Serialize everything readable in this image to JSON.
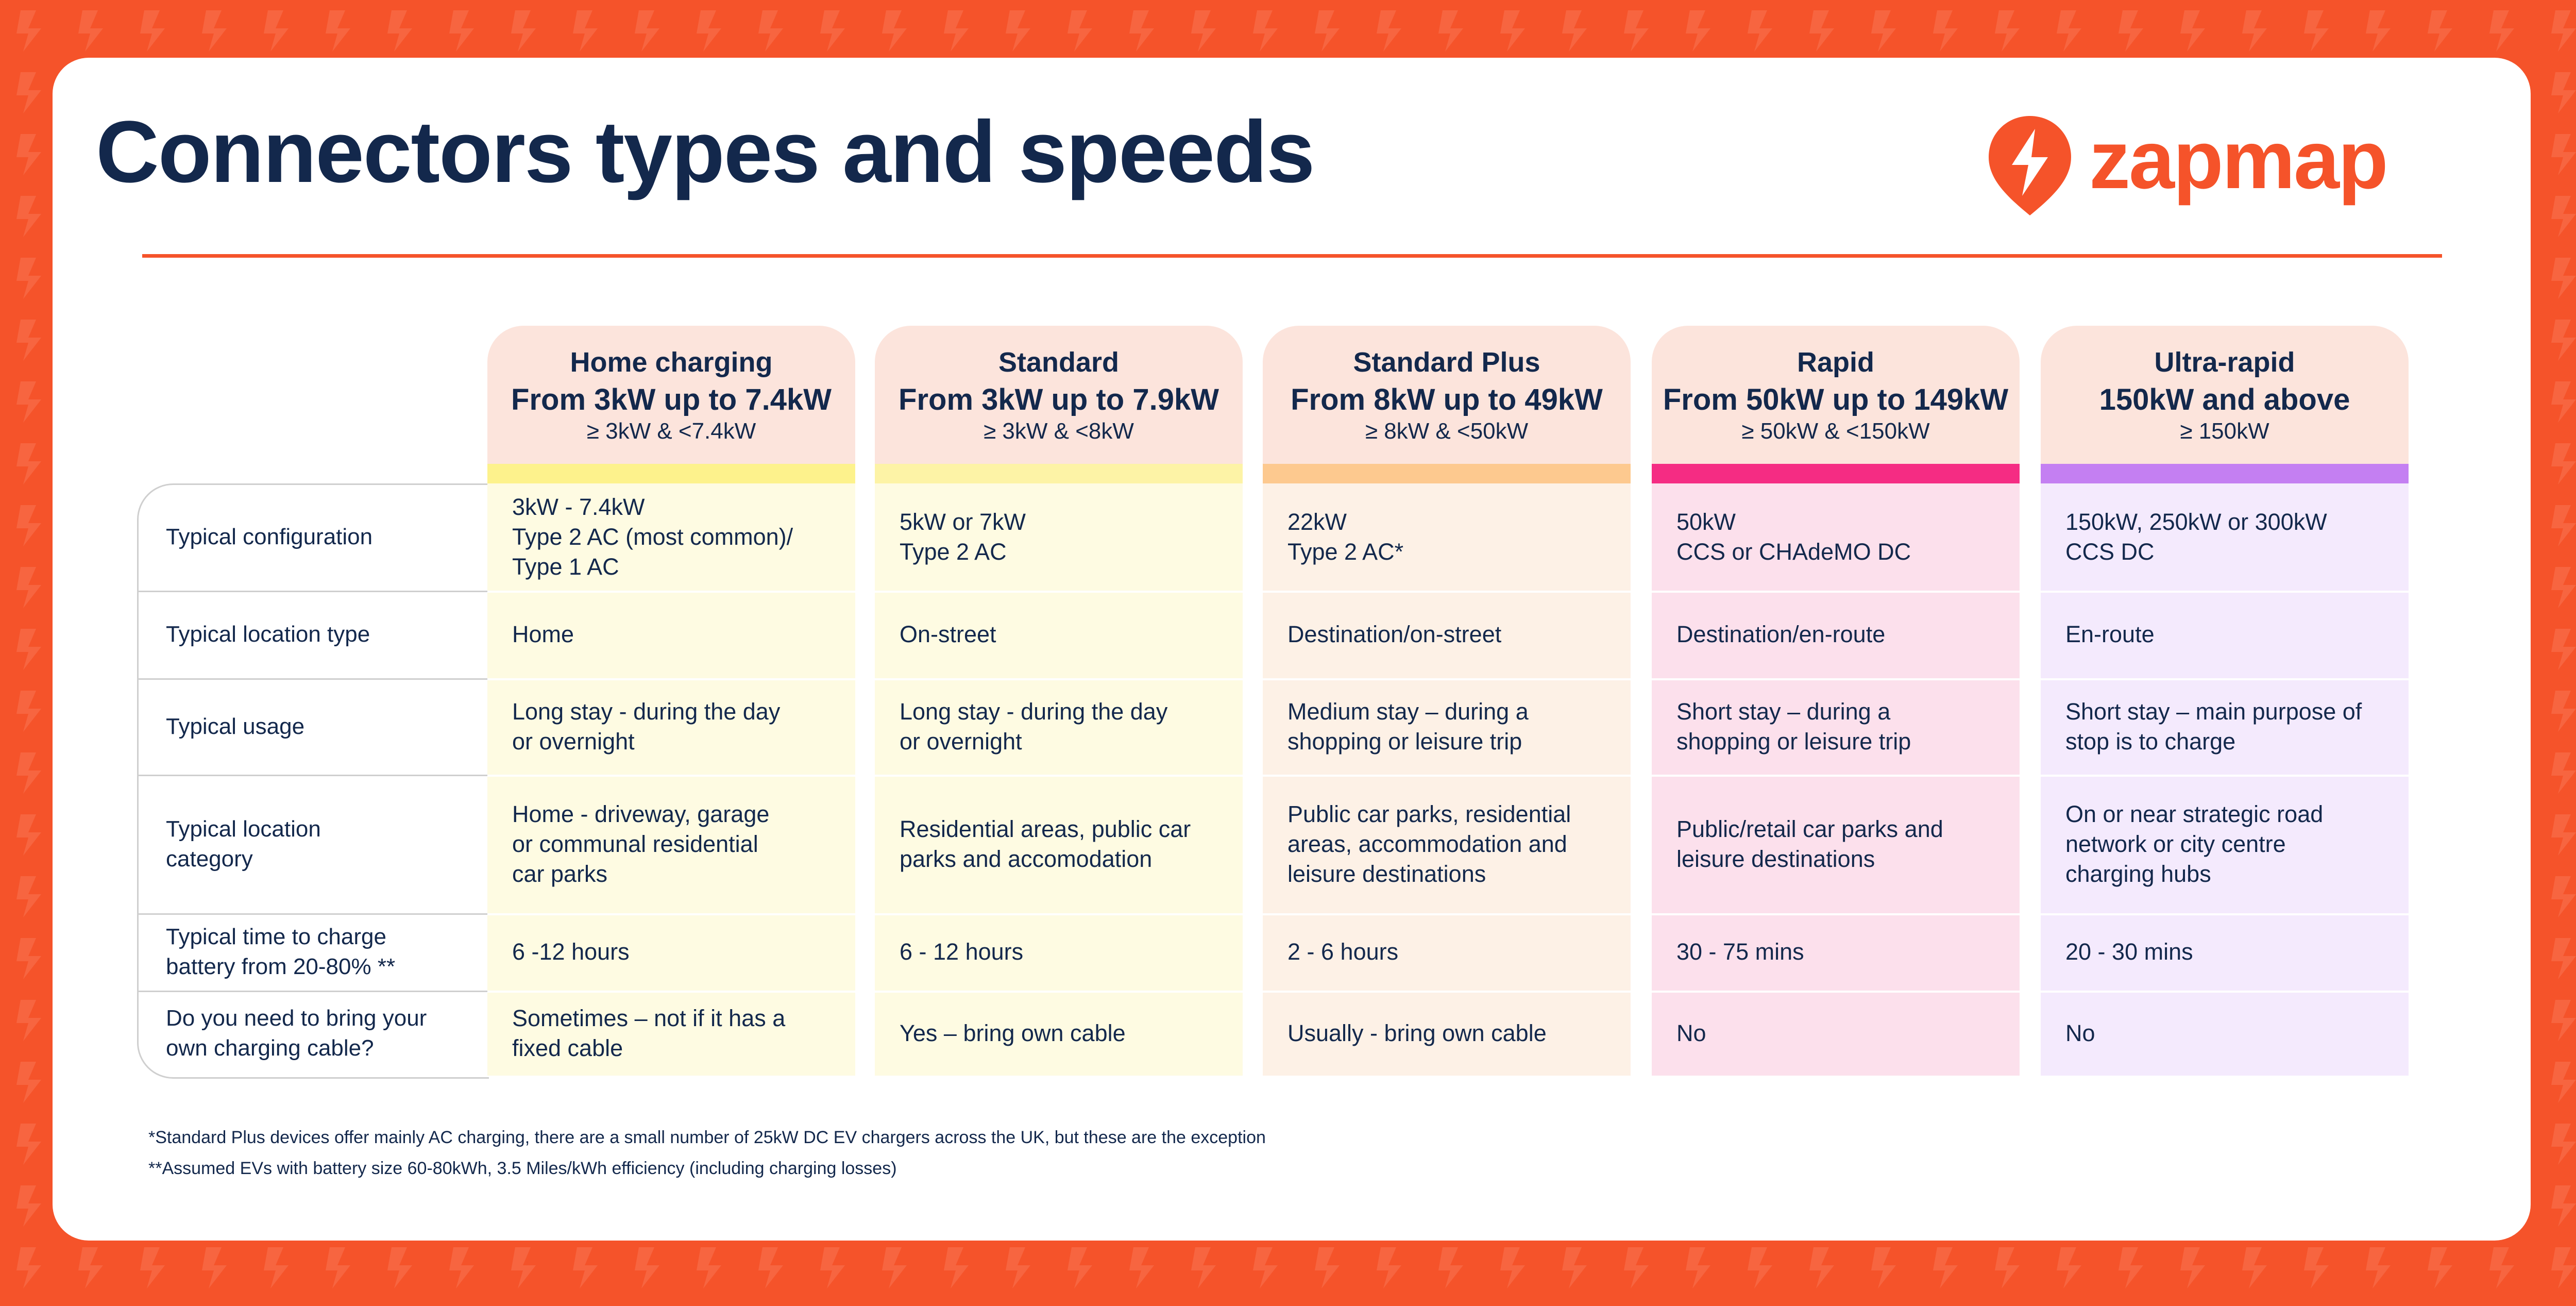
{
  "title": "Connectors types and speeds",
  "logo": {
    "text": "zapmap",
    "icon": "zap-pin-icon"
  },
  "colors": {
    "brand": "#f5532a",
    "navy": "#13284c"
  },
  "tiers": [
    {
      "name": "Home charging",
      "range": "From 3kW up to 7.4kW",
      "limit": "≥ 3kW & <7.4kW",
      "head_color": "#fce4dc",
      "bar_color": "#fdf28c",
      "body_color": "#fefbe2"
    },
    {
      "name": "Standard",
      "range": "From 3kW up to 7.9kW",
      "limit": "≥ 3kW & <8kW",
      "head_color": "#fce4dc",
      "bar_color": "#fdf3a6",
      "body_color": "#fefbe2"
    },
    {
      "name": "Standard Plus",
      "range": "From 8kW up to 49kW",
      "limit": "≥ 8kW & <50kW",
      "head_color": "#fce4dc",
      "bar_color": "#fdc98f",
      "body_color": "#fdf1e6"
    },
    {
      "name": "Rapid",
      "range": "From 50kW up to 149kW",
      "limit": "≥ 50kW & <150kW",
      "head_color": "#fce4dc",
      "bar_color": "#f52c83",
      "body_color": "#fce0ec"
    },
    {
      "name": "Ultra-rapid",
      "range": "150kW and above",
      "limit": "≥ 150kW",
      "head_color": "#fce4dc",
      "bar_color": "#c47ff2",
      "body_color": "#f4eafd"
    }
  ],
  "rows": [
    {
      "label": "Typical configuration",
      "cells": [
        "3kW - 7.4kW\nType 2 AC (most common)/\nType 1 AC",
        "5kW or 7kW\nType 2 AC",
        "22kW\nType 2 AC*",
        "50kW\nCCS or CHAdeMO DC",
        "150kW, 250kW or 300kW\nCCS DC"
      ]
    },
    {
      "label": "Typical location type",
      "cells": [
        "Home",
        "On-street",
        "Destination/on-street",
        "Destination/en-route",
        "En-route"
      ]
    },
    {
      "label": "Typical usage",
      "cells": [
        "Long stay - during the day\nor overnight",
        "Long stay - during the day\nor overnight",
        "Medium stay – during a\nshopping or leisure trip",
        "Short stay – during a\nshopping or leisure trip",
        "Short stay – main purpose of\nstop is to charge"
      ]
    },
    {
      "label": "Typical location\ncategory",
      "cells": [
        "Home - driveway, garage\nor communal residential\ncar parks",
        "Residential areas, public car\nparks and accomodation",
        "Public car parks, residential\nareas, accommodation and\nleisure destinations",
        "Public/retail car parks and\nleisure destinations",
        "On or near strategic road\nnetwork or city centre\ncharging hubs"
      ]
    },
    {
      "label": "Typical time to charge\nbattery from 20-80% **",
      "cells": [
        "6 -12  hours",
        "6 - 12  hours",
        "2 - 6  hours",
        "30 - 75 mins",
        "20 - 30 mins"
      ]
    },
    {
      "label": "Do you need to bring your\nown charging cable?",
      "cells": [
        "Sometimes – not if it has a\nfixed cable",
        "Yes – bring own cable",
        "Usually - bring own cable",
        "No",
        "No"
      ]
    }
  ],
  "footnotes": [
    "*Standard Plus devices offer mainly AC charging, there are a small number of 25kW DC EV chargers across the UK, but these are the exception",
    "**Assumed EVs with battery size 60-80kWh, 3.5 Miles/kWh efficiency (including charging losses)"
  ]
}
